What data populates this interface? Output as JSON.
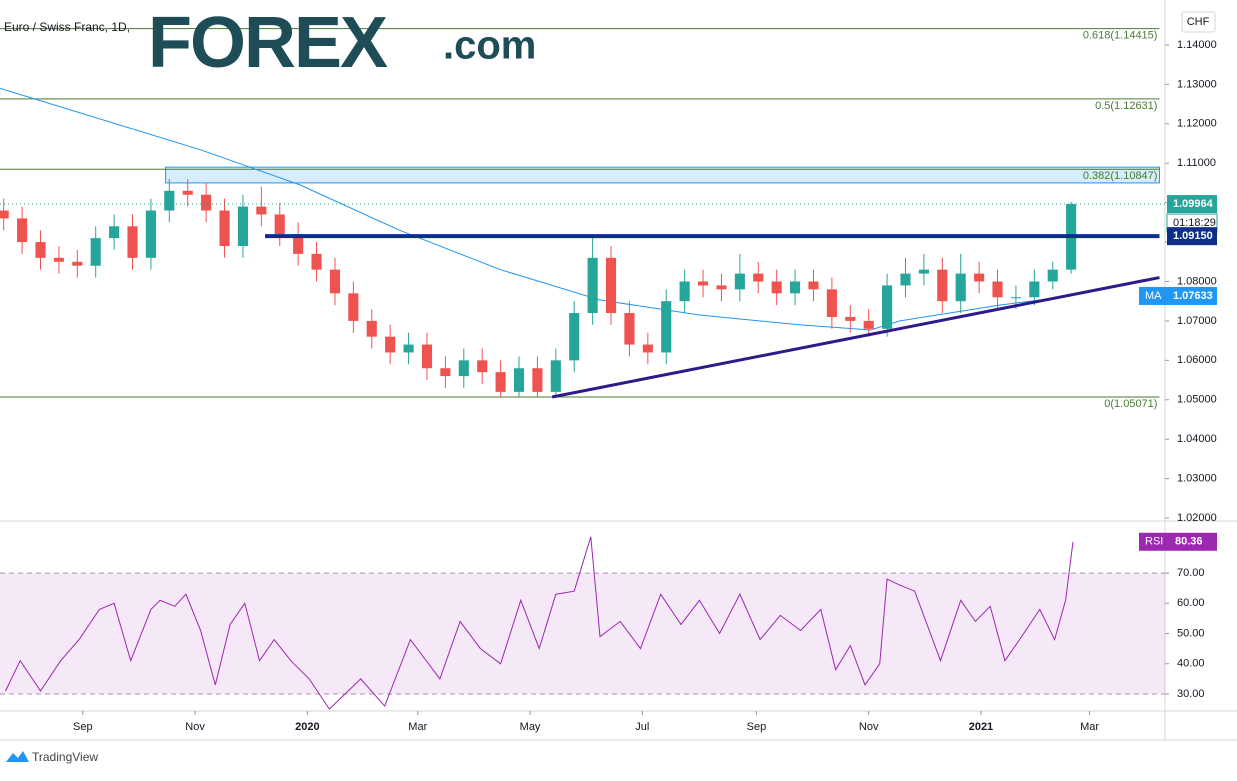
{
  "chart_data": {
    "type": "candlestick",
    "title": "Euro / Swiss Franc, 1D,",
    "currency": "CHF",
    "logo": {
      "main": "FOREX",
      "suffix": ".com"
    },
    "footer": "TradingView",
    "up_color": "#26a69a",
    "down_color": "#ef5350",
    "xlim": [
      0,
      633
    ],
    "xticks": [
      {
        "value": 45,
        "label": "Sep"
      },
      {
        "value": 106,
        "label": "Nov"
      },
      {
        "value": 167,
        "label": "2020"
      },
      {
        "value": 227,
        "label": "Mar"
      },
      {
        "value": 288,
        "label": "May"
      },
      {
        "value": 349,
        "label": "Jul"
      },
      {
        "value": 411,
        "label": "Sep"
      },
      {
        "value": 472,
        "label": "Nov"
      },
      {
        "value": 533,
        "label": "2021"
      },
      {
        "value": 592,
        "label": "Mar"
      }
    ],
    "ylim": [
      1.0195,
      1.1514
    ],
    "yticks": [
      {
        "value": 1.14,
        "label": "1.14000"
      },
      {
        "value": 1.13,
        "label": "1.13000"
      },
      {
        "value": 1.12,
        "label": "1.12000"
      },
      {
        "value": 1.11,
        "label": "1.11000"
      },
      {
        "value": 1.1,
        "label": "1.10000"
      },
      {
        "value": 1.09,
        "label": "1.09000"
      },
      {
        "value": 1.08,
        "label": "1.08000"
      },
      {
        "value": 1.07,
        "label": "1.07000"
      },
      {
        "value": 1.06,
        "label": "1.06000"
      },
      {
        "value": 1.05,
        "label": "1.05000"
      },
      {
        "value": 1.04,
        "label": "1.04000"
      },
      {
        "value": 1.03,
        "label": "1.03000"
      },
      {
        "value": 1.02,
        "label": "1.02000"
      }
    ],
    "x": [
      2,
      12,
      22,
      32,
      42,
      52,
      62,
      72,
      82,
      92,
      102,
      112,
      122,
      132,
      142,
      152,
      162,
      172,
      182,
      192,
      202,
      212,
      222,
      232,
      242,
      252,
      262,
      272,
      282,
      292,
      302,
      312,
      322,
      332,
      342,
      352,
      362,
      372,
      382,
      392,
      402,
      412,
      422,
      432,
      442,
      452,
      462,
      472,
      482,
      492,
      502,
      512,
      522,
      532,
      542,
      552,
      562,
      572,
      582
    ],
    "open": [
      1.098,
      1.096,
      1.09,
      1.086,
      1.085,
      1.084,
      1.091,
      1.094,
      1.086,
      1.098,
      1.103,
      1.102,
      1.098,
      1.089,
      1.099,
      1.097,
      1.092,
      1.087,
      1.083,
      1.077,
      1.07,
      1.066,
      1.062,
      1.064,
      1.058,
      1.056,
      1.06,
      1.057,
      1.052,
      1.058,
      1.052,
      1.06,
      1.072,
      1.086,
      1.072,
      1.064,
      1.062,
      1.075,
      1.08,
      1.079,
      1.078,
      1.082,
      1.08,
      1.077,
      1.08,
      1.078,
      1.071,
      1.07,
      1.068,
      1.079,
      1.082,
      1.083,
      1.075,
      1.082,
      1.08,
      1.076,
      1.076,
      1.08,
      1.083
    ],
    "high": [
      1.101,
      1.099,
      1.093,
      1.089,
      1.088,
      1.094,
      1.097,
      1.097,
      1.101,
      1.106,
      1.106,
      1.105,
      1.101,
      1.102,
      1.104,
      1.1,
      1.095,
      1.09,
      1.086,
      1.08,
      1.073,
      1.069,
      1.067,
      1.067,
      1.061,
      1.063,
      1.063,
      1.06,
      1.061,
      1.061,
      1.063,
      1.075,
      1.0915,
      1.089,
      1.075,
      1.067,
      1.078,
      1.083,
      1.083,
      1.082,
      1.087,
      1.085,
      1.083,
      1.083,
      1.083,
      1.081,
      1.074,
      1.073,
      1.082,
      1.086,
      1.087,
      1.086,
      1.087,
      1.085,
      1.083,
      1.079,
      1.083,
      1.085,
      1.1002
    ],
    "low": [
      1.093,
      1.087,
      1.083,
      1.082,
      1.081,
      1.081,
      1.088,
      1.083,
      1.083,
      1.095,
      1.099,
      1.095,
      1.086,
      1.086,
      1.094,
      1.089,
      1.084,
      1.08,
      1.074,
      1.067,
      1.063,
      1.059,
      1.059,
      1.055,
      1.053,
      1.053,
      1.054,
      1.0507,
      1.0507,
      1.0507,
      1.0507,
      1.057,
      1.069,
      1.069,
      1.061,
      1.059,
      1.059,
      1.072,
      1.076,
      1.075,
      1.075,
      1.077,
      1.074,
      1.074,
      1.075,
      1.068,
      1.067,
      1.066,
      1.066,
      1.076,
      1.079,
      1.072,
      1.072,
      1.077,
      1.073,
      1.073,
      1.074,
      1.078,
      1.082
    ],
    "close": [
      1.096,
      1.09,
      1.086,
      1.085,
      1.084,
      1.091,
      1.094,
      1.086,
      1.098,
      1.103,
      1.102,
      1.098,
      1.089,
      1.099,
      1.097,
      1.092,
      1.087,
      1.083,
      1.077,
      1.07,
      1.066,
      1.062,
      1.064,
      1.058,
      1.056,
      1.06,
      1.057,
      1.052,
      1.058,
      1.052,
      1.06,
      1.072,
      1.086,
      1.072,
      1.064,
      1.062,
      1.075,
      1.08,
      1.079,
      1.078,
      1.082,
      1.08,
      1.077,
      1.08,
      1.078,
      1.071,
      1.07,
      1.068,
      1.079,
      1.082,
      1.083,
      1.075,
      1.082,
      1.08,
      1.076,
      1.076,
      1.08,
      1.083,
      1.09964
    ],
    "last_price": 1.09964,
    "countdown": "01:18:29",
    "ma": {
      "name": "MA",
      "color": "#2196f3",
      "x": [
        0,
        109,
        163,
        217,
        272,
        326,
        380,
        435,
        473,
        489,
        543,
        582
      ],
      "values": [
        1.129,
        1.1134,
        1.1045,
        1.093,
        1.083,
        1.0753,
        1.0715,
        1.069,
        1.0677,
        1.07,
        1.074,
        1.07633
      ]
    },
    "fib_levels": [
      {
        "value": 1.14415,
        "label": "0.618(1.14415)"
      },
      {
        "value": 1.12631,
        "label": "0.5(1.12631)"
      },
      {
        "value": 1.10847,
        "label": "0.382(1.10847)"
      },
      {
        "value": 1.05071,
        "label": "0(1.05071)"
      }
    ],
    "fib_x": [
      0,
      630
    ],
    "zone": {
      "x": [
        90,
        630
      ],
      "y": [
        1.105,
        1.109
      ],
      "color": "#2196f3"
    },
    "support": {
      "x": [
        144,
        630
      ],
      "value": {
        "value": 1.0915,
        "label": "1.09150"
      },
      "color": "#0d2f8a"
    },
    "trendline": {
      "x": [
        300,
        630
      ],
      "y": [
        1.0507,
        1.081
      ],
      "color": "#2e1a8a"
    },
    "rsi": {
      "name": "RSI",
      "color": "#9c27b0",
      "ylim": [
        24.7,
        86.9
      ],
      "yticks": [
        {
          "value": 70,
          "label": "70.00"
        },
        {
          "value": 60,
          "label": "60.00"
        },
        {
          "value": 50,
          "label": "50.00"
        },
        {
          "value": 40,
          "label": "40.00"
        },
        {
          "value": 30,
          "label": "30.00"
        }
      ],
      "band": [
        30,
        70
      ],
      "x": [
        3,
        11,
        22,
        33,
        43,
        54,
        62,
        71,
        82,
        87,
        95,
        101,
        109,
        117,
        125,
        133,
        141,
        149,
        158,
        168,
        179,
        196,
        209,
        223,
        239,
        250,
        261,
        272,
        283,
        293,
        302,
        312,
        321,
        326,
        337,
        348,
        359,
        370,
        380,
        391,
        402,
        413,
        424,
        435,
        446,
        454,
        462,
        470,
        478,
        482,
        489,
        497,
        511,
        522,
        530,
        538,
        546,
        554,
        565,
        573,
        579,
        583
      ],
      "values": [
        31,
        41,
        31,
        41,
        48,
        58,
        60,
        41,
        58,
        61,
        59,
        63,
        51,
        33,
        53,
        60,
        41,
        48,
        41,
        35,
        25,
        35,
        26,
        48,
        35,
        54,
        45,
        40,
        61,
        45,
        63,
        64,
        82,
        49,
        54,
        45,
        63,
        53,
        61,
        50,
        63,
        48,
        56,
        51,
        58,
        38,
        46,
        33,
        40,
        68,
        66,
        64,
        41,
        61,
        54,
        59,
        41,
        48,
        58,
        48,
        61,
        80.36
      ]
    }
  }
}
